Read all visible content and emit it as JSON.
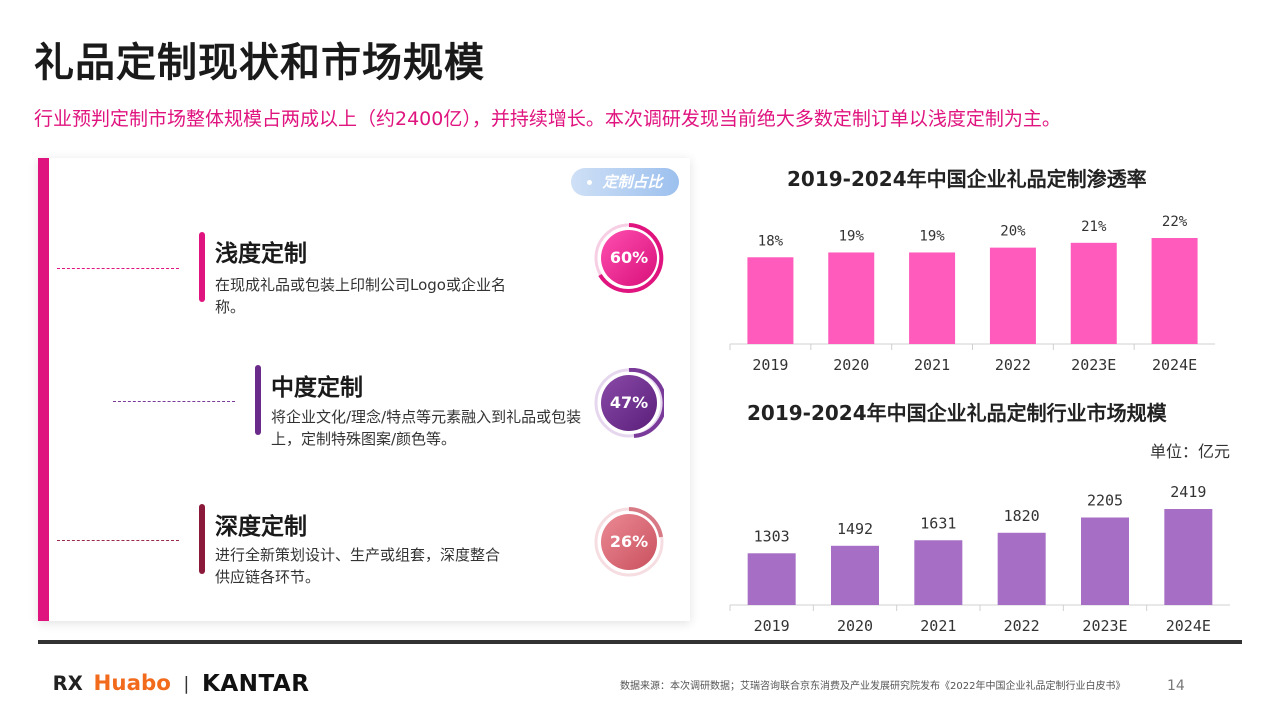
{
  "page": {
    "title": "礼品定制现状和市场规模",
    "subtitle": "行业预判定制市场整体规模占两成以上（约2400亿），并持续增长。本次调研发现当前绝大多数定制订单以浅度定制为主。",
    "tag": "定制占比",
    "source": "数据来源：本次调研数据；艾瑞咨询联合京东消费及产业发展研究院发布《2022年中国企业礼品定制行业白皮书》",
    "page_number": "14"
  },
  "logos": {
    "huabo": "Huabo",
    "separator": "|",
    "kantar": "KANTAR"
  },
  "levels": [
    {
      "name": "浅度定制",
      "desc": "在现成礼品或包装上印制公司Logo或企业名称。",
      "percent_label": "60%",
      "percent": 60,
      "color": "#e0147f"
    },
    {
      "name": "中度定制",
      "desc": "将企业文化/理念/特点等元素融入到礼品或包装上，定制特殊图案/颜色等。",
      "percent_label": "47%",
      "percent": 47,
      "color": "#6a2a8a"
    },
    {
      "name": "深度定制",
      "desc": "进行全新策划设计、生产或组套，深度整合供应链各环节。",
      "percent_label": "26%",
      "percent": 26,
      "color": "#8b1a3a"
    }
  ],
  "unit_label": "单位：亿元",
  "chart_data": [
    {
      "type": "bar",
      "title": "2019-2024年中国企业礼品定制渗透率",
      "categories": [
        "2019",
        "2020",
        "2021",
        "2022",
        "2023E",
        "2024E"
      ],
      "values": [
        18,
        19,
        19,
        20,
        21,
        22
      ],
      "data_labels": [
        "18%",
        "19%",
        "19%",
        "20%",
        "21%",
        "22%"
      ],
      "color": "#ff5bbd",
      "ylim": [
        0,
        22
      ]
    },
    {
      "type": "bar",
      "title": "2019-2024年中国企业礼品定制行业市场规模",
      "categories": [
        "2019",
        "2020",
        "2021",
        "2022",
        "2023E",
        "2024E"
      ],
      "values": [
        1303,
        1492,
        1631,
        1820,
        2205,
        2419
      ],
      "data_labels": [
        "1303",
        "1492",
        "1631",
        "1820",
        "2205",
        "2419"
      ],
      "color": "#a66ec4",
      "ylim": [
        0,
        2419
      ]
    }
  ]
}
